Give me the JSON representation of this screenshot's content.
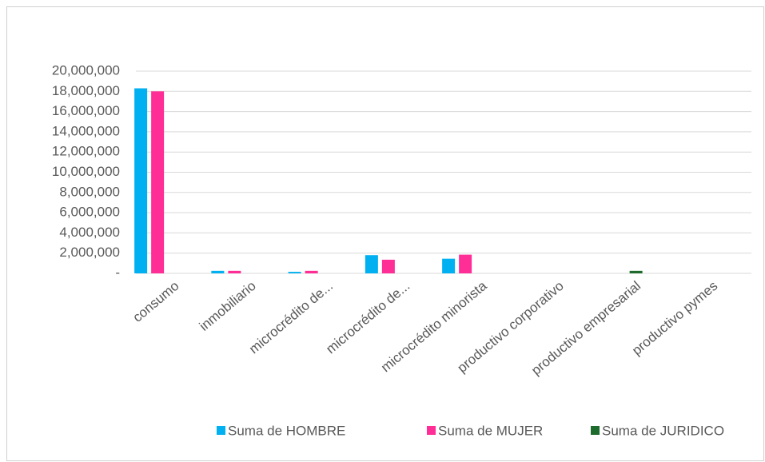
{
  "chart_data": {
    "type": "bar",
    "categories": [
      "consumo",
      "inmobiliario",
      "microcrédito de...",
      "microcrédito de...",
      "microcrédito minorista",
      "productivo corporativo",
      "productivo empresarial",
      "productivo pymes"
    ],
    "series": [
      {
        "name": "Suma de HOMBRE",
        "color": "#00b0f0",
        "values": [
          18300000,
          250000,
          150000,
          1800000,
          1450000,
          0,
          0,
          0
        ]
      },
      {
        "name": "Suma de MUJER",
        "color": "#ff2e97",
        "values": [
          18000000,
          250000,
          250000,
          1350000,
          1850000,
          0,
          0,
          0
        ]
      },
      {
        "name": "Suma de JURIDICO",
        "color": "#1e6b2e",
        "values": [
          0,
          0,
          0,
          0,
          0,
          0,
          250000,
          0
        ]
      }
    ],
    "ylim": [
      0,
      20000000
    ],
    "yticks": [
      {
        "value": 0,
        "label": "-"
      },
      {
        "value": 2000000,
        "label": "2,000,000"
      },
      {
        "value": 4000000,
        "label": "4,000,000"
      },
      {
        "value": 6000000,
        "label": "6,000,000"
      },
      {
        "value": 8000000,
        "label": "8,000,000"
      },
      {
        "value": 10000000,
        "label": "10,000,000"
      },
      {
        "value": 12000000,
        "label": "12,000,000"
      },
      {
        "value": 14000000,
        "label": "14,000,000"
      },
      {
        "value": 16000000,
        "label": "16,000,000"
      },
      {
        "value": 18000000,
        "label": "18,000,000"
      },
      {
        "value": 20000000,
        "label": "20,000,000"
      }
    ],
    "grid": true,
    "legend": "bottom"
  }
}
